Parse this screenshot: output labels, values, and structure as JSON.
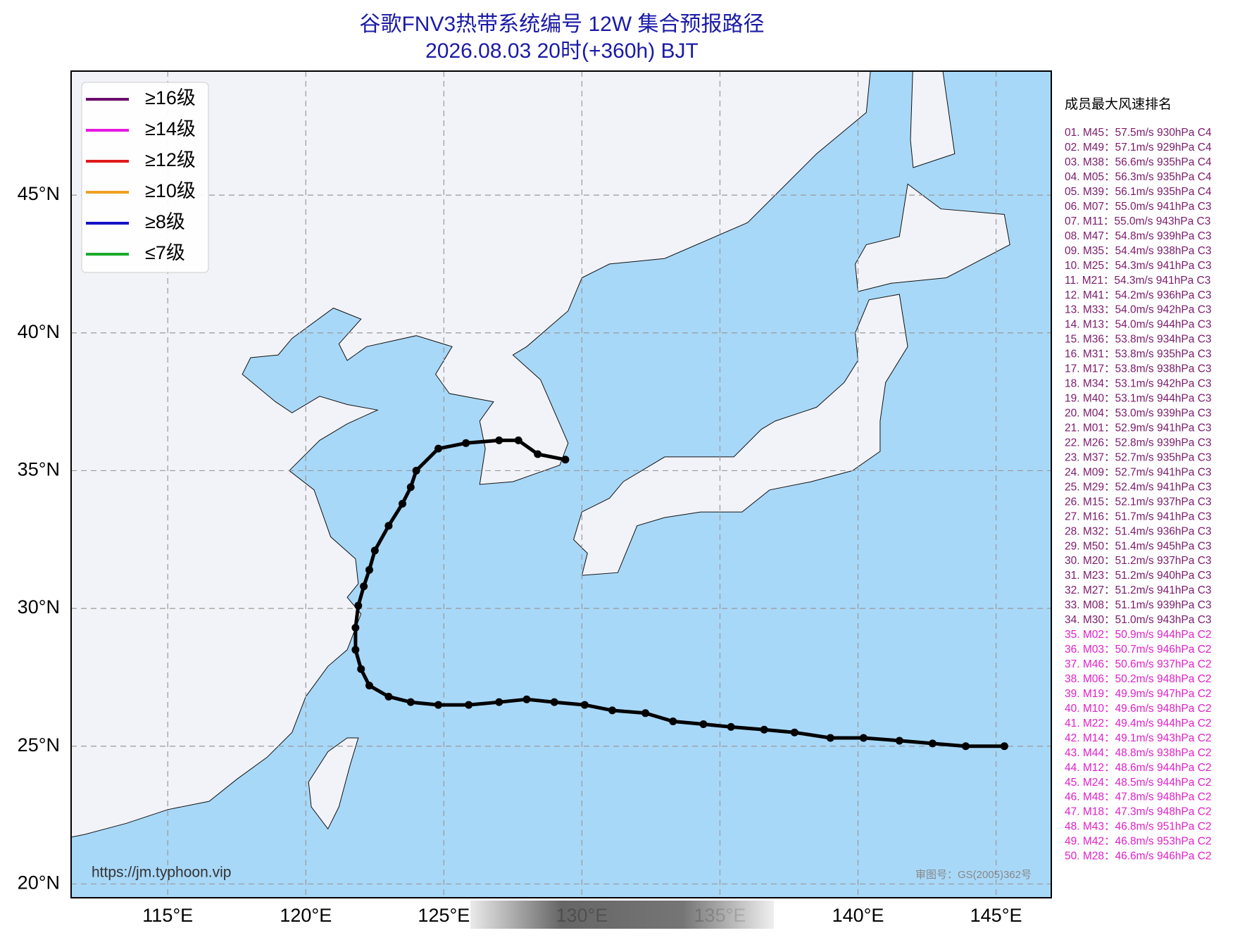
{
  "chart_data": {
    "type": "track-map",
    "title": "谷歌FNV3热带系统编号 12W 集合预报路径",
    "subtitle": "2026.08.03 20时(+360h) BJT",
    "xlim": [
      111.5,
      147
    ],
    "ylim": [
      19.5,
      49.5
    ],
    "xticks": [
      {
        "value": 115,
        "label": "115°E"
      },
      {
        "value": 120,
        "label": "120°E"
      },
      {
        "value": 125,
        "label": "125°E"
      },
      {
        "value": 130,
        "label": "130°E"
      },
      {
        "value": 135,
        "label": "135°E"
      },
      {
        "value": 140,
        "label": "140°E"
      },
      {
        "value": 145,
        "label": "145°E"
      }
    ],
    "yticks": [
      {
        "value": 20,
        "label": "20°N"
      },
      {
        "value": 25,
        "label": "25°N"
      },
      {
        "value": 30,
        "label": "30°N"
      },
      {
        "value": 35,
        "label": "35°N"
      },
      {
        "value": 40,
        "label": "40°N"
      },
      {
        "value": 45,
        "label": "45°N"
      }
    ],
    "grid": true,
    "legend": [
      {
        "name": "≥16级",
        "color": "#6a0a6e"
      },
      {
        "name": "≥14级",
        "color": "#e818e0"
      },
      {
        "name": "≥12级",
        "color": "#e01a1a"
      },
      {
        "name": "≥10级",
        "color": "#f0a020"
      },
      {
        "name": "≥8级",
        "color": "#1414c8"
      },
      {
        "name": "≤7级",
        "color": "#1aaa2a"
      }
    ],
    "mean_track": {
      "color": "#000000",
      "lon": [
        145.3,
        143.9,
        142.7,
        141.5,
        140.2,
        139.0,
        137.7,
        136.6,
        135.4,
        134.4,
        133.3,
        132.3,
        131.1,
        130.1,
        129.0,
        128.0,
        127.0,
        125.9,
        124.8,
        123.8,
        123.0,
        122.3,
        122.0,
        121.8,
        121.8,
        121.9,
        122.1,
        122.3,
        122.5,
        123.0,
        123.5,
        123.8,
        124.0,
        124.8,
        125.8,
        127.0,
        127.7,
        128.4,
        129.4
      ],
      "lat": [
        25.0,
        25.0,
        25.1,
        25.2,
        25.3,
        25.3,
        25.5,
        25.6,
        25.7,
        25.8,
        25.9,
        26.2,
        26.3,
        26.5,
        26.6,
        26.7,
        26.6,
        26.5,
        26.5,
        26.6,
        26.8,
        27.2,
        27.8,
        28.5,
        29.3,
        30.1,
        30.8,
        31.4,
        32.1,
        33.0,
        33.8,
        34.4,
        35.0,
        35.8,
        36.0,
        36.1,
        36.1,
        35.6,
        35.4
      ]
    },
    "ranking": {
      "title": "成员最大风速排名",
      "groups": [
        {
          "color": "#7a1a6a",
          "entries": [
            "01. M45：57.5m/s 930hPa C4",
            "02. M49：57.1m/s 929hPa C4",
            "03. M38：56.6m/s 935hPa C4",
            "04. M05：56.3m/s 935hPa C4",
            "05. M39：56.1m/s 935hPa C4",
            "06. M07：55.0m/s 941hPa C3",
            "07. M11：55.0m/s 943hPa C3",
            "08. M47：54.8m/s 939hPa C3",
            "09. M35：54.4m/s 938hPa C3",
            "10. M25：54.3m/s 941hPa C3",
            "11. M21：54.3m/s 941hPa C3",
            "12. M41：54.2m/s 936hPa C3",
            "13. M33：54.0m/s 942hPa C3",
            "14. M13：54.0m/s 944hPa C3",
            "15. M36：53.8m/s 934hPa C3",
            "16. M31：53.8m/s 935hPa C3",
            "17. M17：53.8m/s 938hPa C3",
            "18. M34：53.1m/s 942hPa C3",
            "19. M40：53.1m/s 944hPa C3",
            "20. M04：53.0m/s 939hPa C3",
            "21. M01：52.9m/s 941hPa C3",
            "22. M26：52.8m/s 939hPa C3",
            "23. M37：52.7m/s 935hPa C3",
            "24. M09：52.7m/s 941hPa C3",
            "25. M29：52.4m/s 941hPa C3",
            "26. M15：52.1m/s 937hPa C3",
            "27. M16：51.7m/s 941hPa C3",
            "28. M32：51.4m/s 936hPa C3",
            "29. M50：51.4m/s 945hPa C3",
            "30. M20：51.2m/s 937hPa C3",
            "31. M23：51.2m/s 940hPa C3",
            "32. M27：51.2m/s 941hPa C3",
            "33. M08：51.1m/s 939hPa C3",
            "34. M30：51.0m/s 943hPa C3"
          ]
        },
        {
          "color": "#e020c8",
          "entries": [
            "35. M02：50.9m/s 944hPa C2",
            "36. M03：50.7m/s 946hPa C2",
            "37. M46：50.6m/s 937hPa C2",
            "38. M06：50.2m/s 948hPa C2",
            "39. M19：49.9m/s 947hPa C2",
            "40. M10：49.6m/s 948hPa C2",
            "41. M22：49.4m/s 944hPa C2",
            "42. M14：49.1m/s 943hPa C2",
            "43. M44：48.8m/s 938hPa C2",
            "44. M12：48.6m/s 944hPa C2",
            "45. M24：48.5m/s 944hPa C2",
            "46. M48：47.8m/s 948hPa C2",
            "47. M18：47.3m/s 948hPa C2",
            "48. M43：46.8m/s 951hPa C2",
            "49. M42：46.8m/s 953hPa C2",
            "50. M28：46.6m/s 946hPa C2"
          ]
        }
      ]
    },
    "source": "https://jm.typhoon.vip",
    "approval": "审图号：GS(2005)362号"
  }
}
